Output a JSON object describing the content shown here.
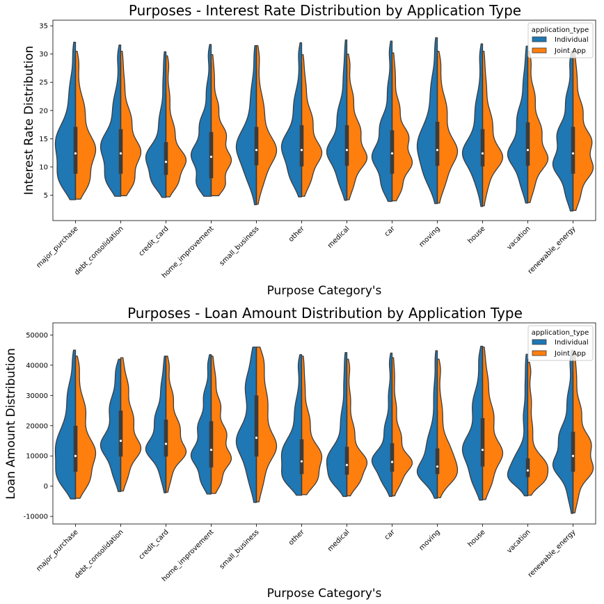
{
  "chart_data": [
    {
      "type": "violin",
      "title": "Purposes - Interest Rate Distribution by Application Type",
      "xlabel": "Purpose Category's",
      "ylabel": "Interest Rate Distribution",
      "categories": [
        "major_purchase",
        "debt_consolidation",
        "credit_card",
        "home_improvement",
        "small_business",
        "other",
        "medical",
        "car",
        "moving",
        "house",
        "vacation",
        "renewable_energy"
      ],
      "ylim": [
        0.5,
        36
      ],
      "yticks": [
        5,
        10,
        15,
        20,
        25,
        30,
        35
      ],
      "legend": {
        "title": "application_type",
        "position": "top-right",
        "entries": [
          "Individual",
          "Joint App"
        ]
      },
      "series": [
        {
          "name": "Individual",
          "color": "#1f77b4",
          "min": [
            4.2,
            4.8,
            4.6,
            4.8,
            3.3,
            4.7,
            4.1,
            3.9,
            3.5,
            3.0,
            3.6,
            2.2
          ],
          "q1": [
            8.8,
            8.8,
            8.6,
            8.0,
            10.3,
            10.1,
            10.2,
            8.8,
            10.2,
            10.1,
            10.2,
            8.8
          ],
          "median": [
            12.4,
            12.4,
            10.9,
            11.8,
            13.0,
            13.0,
            13.0,
            12.4,
            13.0,
            12.4,
            13.0,
            12.4
          ],
          "q3": [
            17.1,
            16.7,
            14.4,
            16.2,
            17.1,
            17.4,
            17.4,
            16.5,
            18.0,
            16.7,
            17.9,
            17.1
          ],
          "max": [
            32.1,
            31.6,
            30.4,
            31.7,
            31.5,
            32.0,
            32.5,
            32.3,
            32.9,
            31.8,
            31.4,
            30.5
          ]
        },
        {
          "name": "Joint App",
          "color": "#ff7f0e",
          "min": [
            4.3,
            4.9,
            4.7,
            4.9,
            3.4,
            4.8,
            4.2,
            4.0,
            3.6,
            3.1,
            3.7,
            2.3
          ],
          "q1": [
            8.8,
            8.8,
            8.6,
            8.0,
            10.3,
            10.1,
            10.2,
            8.8,
            10.2,
            10.1,
            10.2,
            8.8
          ],
          "median": [
            12.4,
            12.4,
            10.9,
            11.8,
            13.0,
            13.0,
            13.0,
            12.4,
            13.0,
            12.4,
            13.0,
            12.4
          ],
          "q3": [
            17.1,
            16.7,
            14.4,
            16.2,
            17.1,
            17.4,
            17.4,
            16.5,
            18.0,
            16.7,
            17.9,
            17.1
          ],
          "max": [
            30.5,
            30.5,
            29.7,
            29.9,
            31.5,
            29.9,
            30.0,
            30.2,
            30.5,
            30.5,
            30.5,
            30.5
          ]
        }
      ]
    },
    {
      "type": "violin",
      "title": "Purposes - Loan Amount Distribution by Application Type",
      "xlabel": "Purpose Category's",
      "ylabel": "Loan Amount Distribution",
      "categories": [
        "major_purchase",
        "debt_consolidation",
        "credit_card",
        "home_improvement",
        "small_business",
        "other",
        "medical",
        "car",
        "moving",
        "house",
        "vacation",
        "renewable_energy"
      ],
      "ylim": [
        -12500,
        54000
      ],
      "yticks": [
        -10000,
        0,
        10000,
        20000,
        30000,
        40000,
        50000
      ],
      "legend": {
        "title": "application_type",
        "position": "top-right",
        "entries": [
          "Individual",
          "Joint App"
        ]
      },
      "series": [
        {
          "name": "Individual",
          "color": "#1f77b4",
          "min": [
            -4200,
            -1800,
            -2200,
            -2600,
            -5400,
            -3000,
            -3400,
            -3400,
            -4000,
            -4600,
            -3200,
            -9000
          ],
          "q1": [
            4800,
            9800,
            9800,
            6200,
            9800,
            4000,
            3800,
            4800,
            4000,
            6500,
            3000,
            4800
          ],
          "median": [
            10000,
            15000,
            14000,
            12000,
            16000,
            8200,
            7000,
            8000,
            6500,
            12000,
            5200,
            10000
          ],
          "q3": [
            20000,
            25000,
            22000,
            21500,
            30000,
            15500,
            13000,
            14200,
            12500,
            22500,
            9200,
            18000
          ],
          "max": [
            45000,
            42000,
            43000,
            43500,
            46000,
            43500,
            44200,
            44000,
            44800,
            46300,
            43600,
            45000
          ]
        },
        {
          "name": "Joint App",
          "color": "#ff7f0e",
          "min": [
            -4000,
            -1600,
            -2000,
            -2400,
            -5200,
            -2800,
            -3200,
            -3200,
            -3800,
            -4400,
            -3000,
            -8800
          ],
          "q1": [
            4800,
            9800,
            9800,
            6200,
            9800,
            4000,
            3800,
            4800,
            4000,
            6500,
            3000,
            4800
          ],
          "median": [
            10000,
            15000,
            14000,
            12000,
            16000,
            8200,
            7000,
            8000,
            6500,
            12000,
            5200,
            10000
          ],
          "q3": [
            20000,
            25000,
            22000,
            21500,
            30000,
            15500,
            13000,
            14200,
            12500,
            22500,
            9200,
            18000
          ],
          "max": [
            43000,
            42500,
            43000,
            43000,
            46000,
            43000,
            42000,
            42500,
            42000,
            46000,
            41000,
            44500
          ]
        }
      ]
    }
  ]
}
